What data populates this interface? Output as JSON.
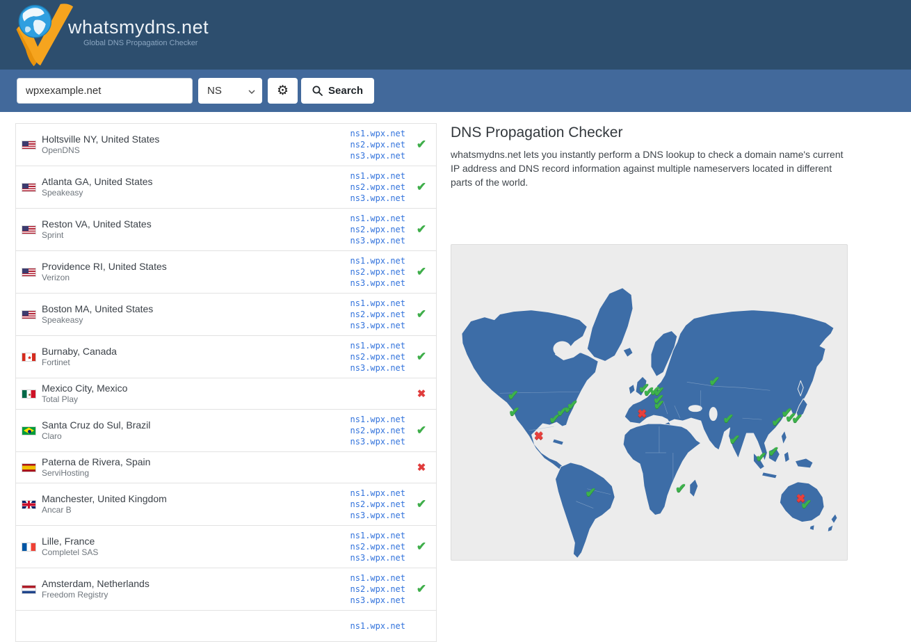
{
  "header": {
    "brand": "whatsmydns.net",
    "tagline": "Global DNS Propagation Checker"
  },
  "search": {
    "query": "wpxexample.net",
    "record_type": "NS",
    "button_label": "Search"
  },
  "main": {
    "title": "DNS Propagation Checker",
    "description": "whatsmydns.net lets you instantly perform a DNS lookup to check a domain name's current IP address and DNS record information against multiple nameservers located in different parts of the world."
  },
  "results": [
    {
      "flag": "us",
      "location": "Holtsville NY, United States",
      "isp": "OpenDNS",
      "records": [
        "ns1.wpx.net",
        "ns2.wpx.net",
        "ns3.wpx.net"
      ],
      "status": "ok"
    },
    {
      "flag": "us",
      "location": "Atlanta GA, United States",
      "isp": "Speakeasy",
      "records": [
        "ns1.wpx.net",
        "ns2.wpx.net",
        "ns3.wpx.net"
      ],
      "status": "ok"
    },
    {
      "flag": "us",
      "location": "Reston VA, United States",
      "isp": "Sprint",
      "records": [
        "ns1.wpx.net",
        "ns2.wpx.net",
        "ns3.wpx.net"
      ],
      "status": "ok"
    },
    {
      "flag": "us",
      "location": "Providence RI, United States",
      "isp": "Verizon",
      "records": [
        "ns1.wpx.net",
        "ns2.wpx.net",
        "ns3.wpx.net"
      ],
      "status": "ok"
    },
    {
      "flag": "us",
      "location": "Boston MA, United States",
      "isp": "Speakeasy",
      "records": [
        "ns1.wpx.net",
        "ns2.wpx.net",
        "ns3.wpx.net"
      ],
      "status": "ok"
    },
    {
      "flag": "ca",
      "location": "Burnaby, Canada",
      "isp": "Fortinet",
      "records": [
        "ns1.wpx.net",
        "ns2.wpx.net",
        "ns3.wpx.net"
      ],
      "status": "ok"
    },
    {
      "flag": "mx",
      "location": "Mexico City, Mexico",
      "isp": "Total Play",
      "records": [],
      "status": "fail"
    },
    {
      "flag": "br",
      "location": "Santa Cruz do Sul, Brazil",
      "isp": "Claro",
      "records": [
        "ns1.wpx.net",
        "ns2.wpx.net",
        "ns3.wpx.net"
      ],
      "status": "ok"
    },
    {
      "flag": "es",
      "location": "Paterna de Rivera, Spain",
      "isp": "ServiHosting",
      "records": [],
      "status": "fail"
    },
    {
      "flag": "gb",
      "location": "Manchester, United Kingdom",
      "isp": "Ancar B",
      "records": [
        "ns1.wpx.net",
        "ns2.wpx.net",
        "ns3.wpx.net"
      ],
      "status": "ok"
    },
    {
      "flag": "fr",
      "location": "Lille, France",
      "isp": "Completel SAS",
      "records": [
        "ns1.wpx.net",
        "ns2.wpx.net",
        "ns3.wpx.net"
      ],
      "status": "ok"
    },
    {
      "flag": "nl",
      "location": "Amsterdam, Netherlands",
      "isp": "Freedom Registry",
      "records": [
        "ns1.wpx.net",
        "ns2.wpx.net",
        "ns3.wpx.net"
      ],
      "status": "ok"
    },
    {
      "flag": "",
      "location": "",
      "isp": "",
      "records": [
        "ns1.wpx.net"
      ],
      "status": ""
    }
  ],
  "map": {
    "markers": [
      {
        "type": "ok",
        "x": 15.6,
        "y": 48.0
      },
      {
        "type": "ok",
        "x": 15.9,
        "y": 53.3
      },
      {
        "type": "ok",
        "x": 26.1,
        "y": 55.5
      },
      {
        "type": "ok",
        "x": 28.0,
        "y": 53.3
      },
      {
        "type": "ok",
        "x": 29.8,
        "y": 52.0
      },
      {
        "type": "ok",
        "x": 30.6,
        "y": 50.9
      },
      {
        "type": "ok",
        "x": 35.2,
        "y": 78.7
      },
      {
        "type": "ok",
        "x": 48.7,
        "y": 45.8
      },
      {
        "type": "ok",
        "x": 49.9,
        "y": 46.7
      },
      {
        "type": "ok",
        "x": 51.5,
        "y": 46.5
      },
      {
        "type": "ok",
        "x": 52.5,
        "y": 46.7
      },
      {
        "type": "ok",
        "x": 52.4,
        "y": 49.3
      },
      {
        "type": "ok",
        "x": 52.5,
        "y": 50.9
      },
      {
        "type": "ok",
        "x": 66.5,
        "y": 43.4
      },
      {
        "type": "ok",
        "x": 70.0,
        "y": 55.5
      },
      {
        "type": "ok",
        "x": 71.6,
        "y": 62.1
      },
      {
        "type": "ok",
        "x": 82.3,
        "y": 56.4
      },
      {
        "type": "ok",
        "x": 84.8,
        "y": 53.5
      },
      {
        "type": "ok",
        "x": 85.8,
        "y": 55.0
      },
      {
        "type": "ok",
        "x": 87.4,
        "y": 55.3
      },
      {
        "type": "ok",
        "x": 78.3,
        "y": 67.5
      },
      {
        "type": "ok",
        "x": 81.4,
        "y": 65.8
      },
      {
        "type": "ok",
        "x": 58.0,
        "y": 77.4
      },
      {
        "type": "ok",
        "x": 89.7,
        "y": 82.5
      },
      {
        "type": "fail",
        "x": 22.1,
        "y": 61.0
      },
      {
        "type": "fail",
        "x": 48.2,
        "y": 53.9
      },
      {
        "type": "fail",
        "x": 88.3,
        "y": 80.7
      }
    ]
  },
  "colors": {
    "header_bg": "#2d4e6e",
    "search_band_bg": "#42699b",
    "record_text": "#3273dc",
    "ok_green": "#3fae4a",
    "fail_red": "#e03c3c",
    "map_land": "#3d6da7",
    "map_bg": "#ececec"
  }
}
